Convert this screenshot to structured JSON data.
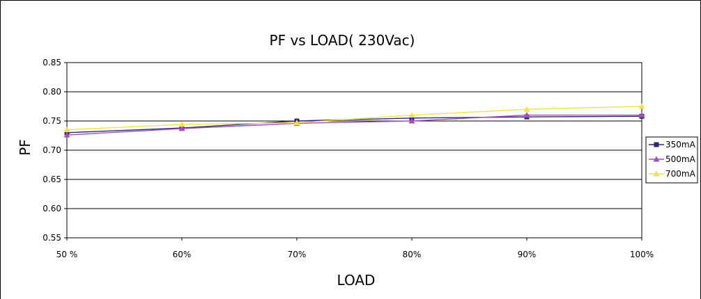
{
  "chart_data": {
    "type": "line",
    "title": "PF vs LOAD( 230Vac)",
    "xlabel": "LOAD",
    "ylabel": "PF",
    "categories": [
      "50 %",
      "60%",
      "70%",
      "80%",
      "90%",
      "100%"
    ],
    "ylim": [
      0.55,
      0.85
    ],
    "yticks": [
      "0.55",
      "0.60",
      "0.65",
      "0.70",
      "0.75",
      "0.80",
      "0.85"
    ],
    "grid": true,
    "legend": "right",
    "series": [
      {
        "name": "350mA",
        "values": [
          0.73,
          0.738,
          0.75,
          0.755,
          0.757,
          0.758
        ],
        "color": "#2b2a6e",
        "marker": "square"
      },
      {
        "name": "500mA",
        "values": [
          0.726,
          0.737,
          0.746,
          0.75,
          0.76,
          0.76
        ],
        "color": "#a24fb8",
        "marker": "triangle"
      },
      {
        "name": "700mA",
        "values": [
          0.735,
          0.744,
          0.747,
          0.76,
          0.77,
          0.775
        ],
        "color": "#f0e34a",
        "marker": "triangle"
      }
    ]
  }
}
